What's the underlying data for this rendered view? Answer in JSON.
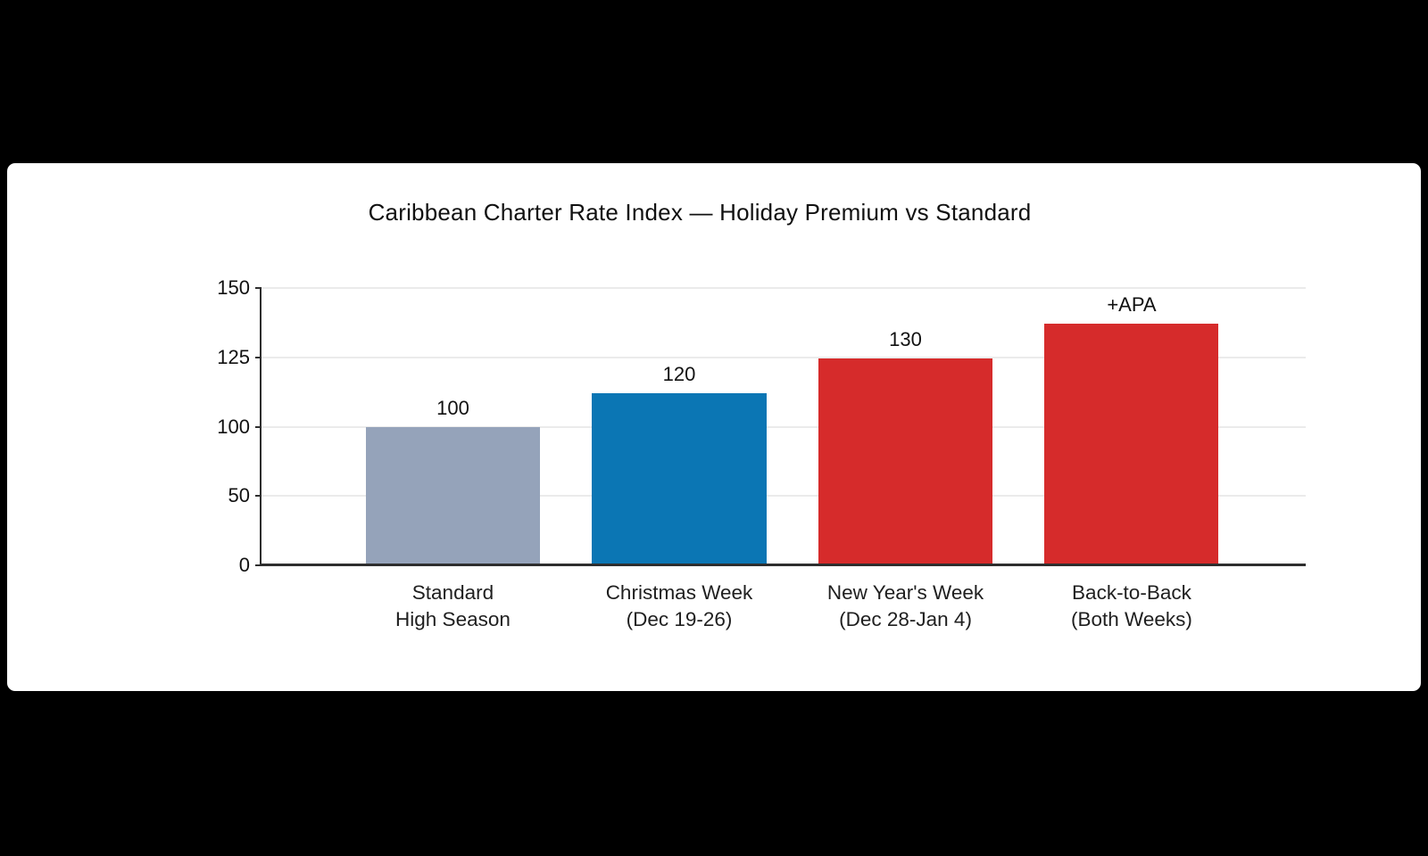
{
  "page": {
    "background_color": "#000000",
    "card_background_color": "#ffffff"
  },
  "chart_data": {
    "type": "bar",
    "title": "Caribbean Charter Rate Index — Holiday Premium vs Standard",
    "categories": [
      "Standard High Season",
      "Christmas Week (Dec 19-26)",
      "New Year's Week (Dec 28-Jan 4)",
      "Back-to-Back (Both Weeks)"
    ],
    "values": [
      100,
      120,
      130,
      null
    ],
    "value_labels": [
      "100",
      "120",
      "130",
      "+APA"
    ],
    "xlabel": "",
    "ylabel": "",
    "ylim": [
      0,
      150
    ],
    "y_ticks": [
      0,
      50,
      100,
      125,
      150
    ],
    "grid": true,
    "legend_position": "none",
    "colors": {
      "standard_bar": "#95a3ba",
      "christmas_bar": "#0b76b4",
      "newyear_bar": "#d62b2b",
      "backtoback_bar": "#d62b2b",
      "gridline": "#ebebeb",
      "axis": "#2e2e2e",
      "text": "#111111"
    },
    "render": {
      "bar_width_pct": 16.67,
      "bars": [
        {
          "name": "bar-standard-high-season",
          "center_pct": 18.33,
          "height_pct": 50.0,
          "color": "#95a3ba",
          "value_label": "100",
          "category_line1": "Standard",
          "category_line2": "High Season"
        },
        {
          "name": "bar-christmas-week",
          "center_pct": 40.0,
          "height_pct": 62.2,
          "color": "#0b76b4",
          "value_label": "120",
          "category_line1": "Christmas Week",
          "category_line2": "(Dec 19-26)"
        },
        {
          "name": "bar-new-years-week",
          "center_pct": 61.67,
          "height_pct": 74.5,
          "color": "#d62b2b",
          "value_label": "130",
          "category_line1": "New Year's Week",
          "category_line2": "(Dec 28-Jan 4)"
        },
        {
          "name": "bar-back-to-back",
          "center_pct": 83.33,
          "height_pct": 87.0,
          "color": "#d62b2b",
          "value_label": "+APA",
          "category_line1": "Back-to-Back",
          "category_line2": "(Both Weeks)"
        }
      ],
      "y_ticks": [
        {
          "label": "150",
          "pos_pct": 0
        },
        {
          "label": "125",
          "pos_pct": 25
        },
        {
          "label": "100",
          "pos_pct": 50
        },
        {
          "label": "50",
          "pos_pct": 75
        },
        {
          "label": "0",
          "pos_pct": 100
        }
      ]
    }
  }
}
